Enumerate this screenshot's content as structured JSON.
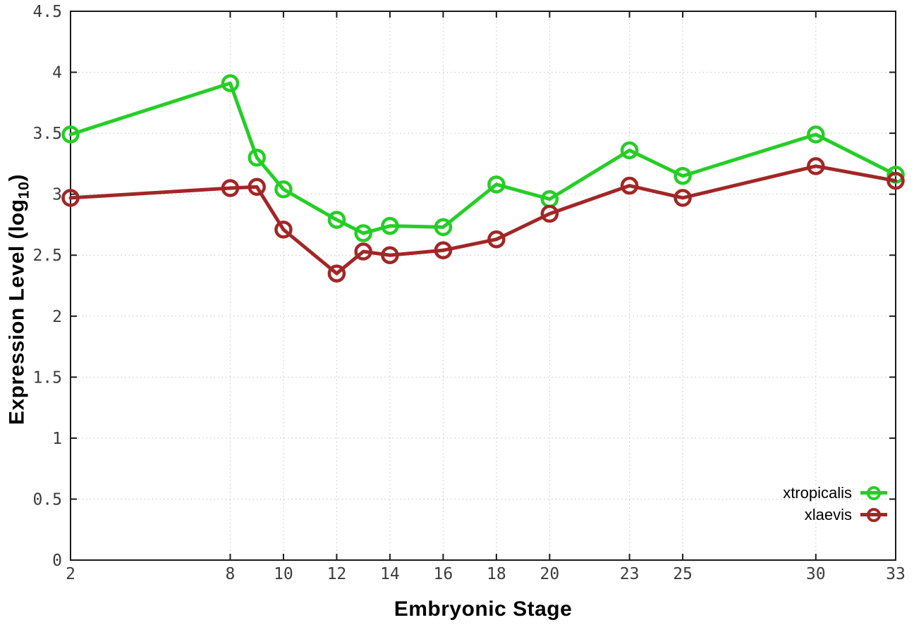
{
  "chart_data": {
    "type": "line",
    "xlabel": "Embryonic Stage",
    "ylabel": {
      "prefix": "Expression Level (log",
      "sub": "10",
      "suffix": ")"
    },
    "xlim": [
      2,
      33
    ],
    "ylim": [
      0,
      4.5
    ],
    "grid": true,
    "legend_position": "bottom-right",
    "x": [
      2,
      8,
      9,
      10,
      12,
      13,
      14,
      16,
      18,
      20,
      23,
      25,
      30,
      33
    ],
    "x_ticks": [
      {
        "value": 2,
        "label": "2"
      },
      {
        "value": 8,
        "label": "8"
      },
      {
        "value": 10,
        "label": "10"
      },
      {
        "value": 12,
        "label": "12"
      },
      {
        "value": 14,
        "label": "14"
      },
      {
        "value": 16,
        "label": "16"
      },
      {
        "value": 18,
        "label": "18"
      },
      {
        "value": 20,
        "label": "20"
      },
      {
        "value": 23,
        "label": "23"
      },
      {
        "value": 25,
        "label": "25"
      },
      {
        "value": 30,
        "label": "30"
      },
      {
        "value": 33,
        "label": "33"
      }
    ],
    "y_ticks": [
      {
        "value": 0,
        "label": "0"
      },
      {
        "value": 0.5,
        "label": "0.5"
      },
      {
        "value": 1,
        "label": "1"
      },
      {
        "value": 1.5,
        "label": "1.5"
      },
      {
        "value": 2,
        "label": "2"
      },
      {
        "value": 2.5,
        "label": "2.5"
      },
      {
        "value": 3,
        "label": "3"
      },
      {
        "value": 3.5,
        "label": "3.5"
      },
      {
        "value": 4,
        "label": "4"
      },
      {
        "value": 4.5,
        "label": "4.5"
      }
    ],
    "series": [
      {
        "name": "xtropicalis",
        "color": "#25CE25",
        "values": [
          3.49,
          3.91,
          3.3,
          3.04,
          2.79,
          2.68,
          2.74,
          2.73,
          3.08,
          2.96,
          3.36,
          3.15,
          3.49,
          3.16
        ]
      },
      {
        "name": "xlaevis",
        "color": "#A22626",
        "values": [
          2.97,
          3.05,
          3.06,
          2.71,
          2.35,
          2.53,
          2.5,
          2.54,
          2.63,
          2.84,
          3.07,
          2.97,
          3.23,
          3.11
        ]
      }
    ],
    "style": {
      "grid_color": "#c4c4c4",
      "border_color": "#1a1a1a",
      "tick_label_color": "#3c3c3c"
    }
  }
}
